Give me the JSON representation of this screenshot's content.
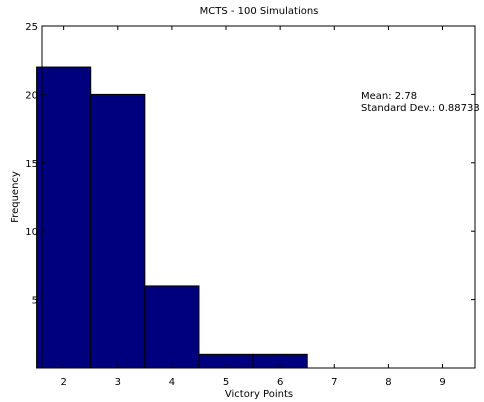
{
  "chart_data": {
    "type": "bar",
    "title": "MCTS - 100 Simulations",
    "xlabel": "Victory Points",
    "ylabel": "Frequency",
    "bins": [
      {
        "from": 1.5,
        "to": 2.5,
        "count": 22
      },
      {
        "from": 2.5,
        "to": 3.5,
        "count": 20
      },
      {
        "from": 3.5,
        "to": 4.5,
        "count": 6
      },
      {
        "from": 4.5,
        "to": 5.5,
        "count": 1
      },
      {
        "from": 5.5,
        "to": 6.5,
        "count": 1
      }
    ],
    "xlim": [
      1.6,
      9.6
    ],
    "ylim": [
      0,
      25
    ],
    "xticks": [
      2,
      3,
      4,
      5,
      6,
      7,
      8,
      9
    ],
    "xtick_labels": [
      "2",
      "3",
      "4",
      "5",
      "6",
      "7",
      "8",
      "9"
    ],
    "yticks": [
      5,
      10,
      15,
      20,
      25
    ],
    "ytick_labels": [
      "5",
      "10",
      "15",
      "20",
      "25"
    ],
    "annotations": [
      "Mean: 2.78",
      "Standard Dev.: 0.88733"
    ],
    "grid": false,
    "bar_color": "#00007f",
    "edge_color": "#000000"
  }
}
